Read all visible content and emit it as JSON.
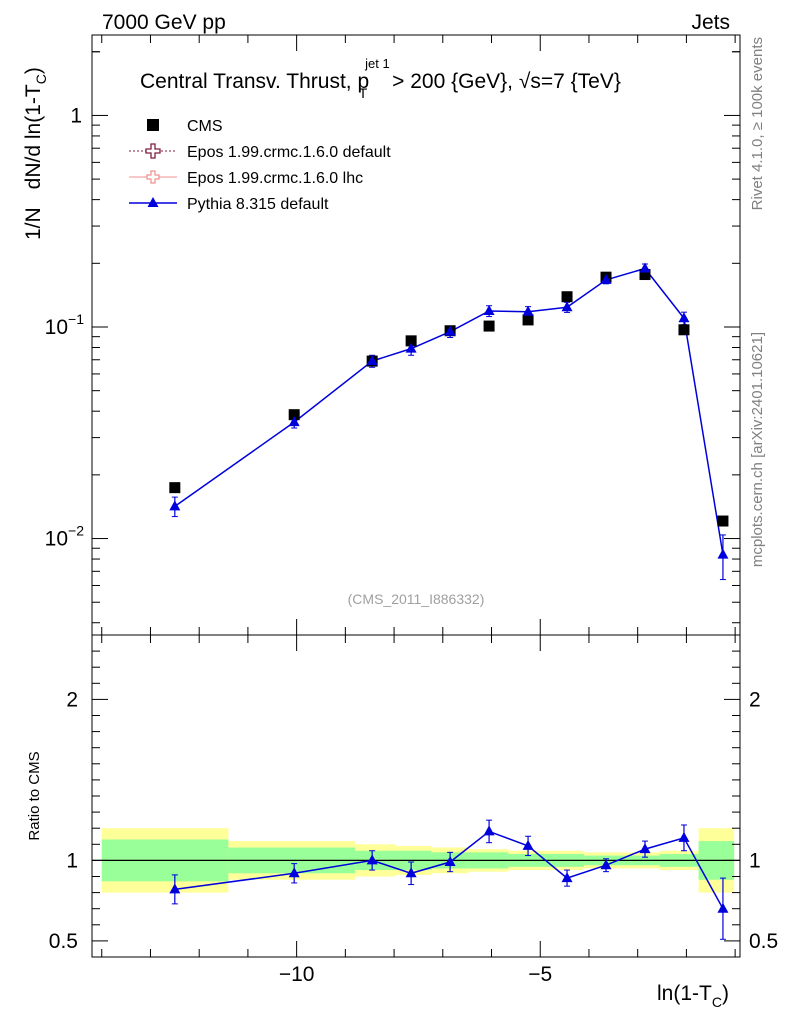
{
  "header": {
    "left": "7000 GeV pp",
    "right": "Jets",
    "side_top": "Rivet 4.1.0, ≥ 100k events",
    "side_bottom": "mcplots.cern.ch [arXiv:2401.10621]",
    "watermark": "(CMS_2011_I886332)"
  },
  "chart_data": {
    "type": "line",
    "title": "Central Transv. Thrust, p_T^{jet 1} > 200 {GeV}, √s=7 {TeV}",
    "title_parts": {
      "main": "Central Transv. Thrust, p",
      "sub": "T",
      "sup": "jet 1",
      "cut": " > 200 {GeV}, ",
      "sqrt": "√",
      "energy": "s=7 {TeV}"
    },
    "ylabel": "1/N   dN/d ln(1-T_C)",
    "ylabel_parts": {
      "left": "1/N",
      "main": "dN/d ln(1-T",
      "sub": "C",
      "close": ")"
    },
    "xlabel": "ln(1-T_C)",
    "xlabel_parts": {
      "main": "ln(1-T",
      "sub": "C",
      "close": ")"
    },
    "ratio_ylabel": "Ratio to CMS",
    "xlim": [
      -14.2,
      -0.9
    ],
    "ylim": [
      0.0035,
      2.4
    ],
    "yscale": "log",
    "ratio_ylim": [
      0.4,
      2.4
    ],
    "x_ticks": [
      {
        "value": -10,
        "label": "−10"
      },
      {
        "value": -5,
        "label": "−5"
      }
    ],
    "y_ticks": [
      {
        "value": 1,
        "label": "1",
        "exp": ""
      },
      {
        "value": 0.1,
        "label": "10",
        "exp": "−1"
      },
      {
        "value": 0.01,
        "label": "10",
        "exp": "−2"
      }
    ],
    "ratio_ticks": [
      {
        "value": 0.5,
        "label": "0.5"
      },
      {
        "value": 1,
        "label": "1"
      },
      {
        "value": 2,
        "label": "2"
      }
    ],
    "legend_placement": "top-left",
    "legend": [
      {
        "name": "CMS",
        "color": "#000000",
        "marker": "square"
      },
      {
        "name": "Epos 1.99.crmc.1.6.0 default",
        "color": "#7f1f3f",
        "marker": "cross-open"
      },
      {
        "name": "Epos 1.99.crmc.1.6.0 lhc",
        "color": "#f09090",
        "marker": "cross-open-light"
      },
      {
        "name": "Pythia 8.315 default",
        "color": "#0000dd",
        "marker": "triangle"
      }
    ],
    "bins": [
      [
        -14.0,
        -11.4
      ],
      [
        -11.4,
        -8.8
      ],
      [
        -8.8,
        -7.97
      ],
      [
        -7.97,
        -7.23
      ],
      [
        -7.23,
        -6.47
      ],
      [
        -6.47,
        -5.65
      ],
      [
        -5.65,
        -4.87
      ],
      [
        -4.87,
        -4.1
      ],
      [
        -4.1,
        -3.3
      ],
      [
        -3.3,
        -2.55
      ],
      [
        -2.55,
        -1.75
      ],
      [
        -1.75,
        -1.02
      ]
    ],
    "data": {
      "x": [
        -12.5,
        -10.05,
        -8.45,
        -7.65,
        -6.85,
        -6.05,
        -5.25,
        -4.45,
        -3.65,
        -2.85,
        -2.05,
        -1.25
      ],
      "y": [
        0.0174,
        0.0385,
        0.069,
        0.086,
        0.096,
        0.101,
        0.108,
        0.139,
        0.172,
        0.177,
        0.097,
        0.0121
      ],
      "stat_band": [
        0.13,
        0.08,
        0.06,
        0.06,
        0.05,
        0.05,
        0.04,
        0.04,
        0.03,
        0.03,
        0.04,
        0.12
      ],
      "total_band": [
        0.2,
        0.12,
        0.1,
        0.09,
        0.08,
        0.07,
        0.06,
        0.06,
        0.05,
        0.05,
        0.06,
        0.2
      ]
    },
    "series": [
      {
        "name": "Pythia 8.315 default",
        "x": [
          -12.5,
          -10.05,
          -8.45,
          -7.65,
          -6.85,
          -6.05,
          -5.25,
          -4.45,
          -3.65,
          -2.85,
          -2.05,
          -1.25
        ],
        "y": [
          0.0142,
          0.0355,
          0.069,
          0.079,
          0.095,
          0.119,
          0.118,
          0.124,
          0.167,
          0.189,
          0.11,
          0.0084
        ],
        "err": [
          0.0015,
          0.0022,
          0.0045,
          0.0055,
          0.0058,
          0.007,
          0.0068,
          0.0068,
          0.007,
          0.0095,
          0.0075,
          0.002
        ],
        "ratio": [
          0.82,
          0.92,
          1.0,
          0.92,
          0.99,
          1.18,
          1.09,
          0.89,
          0.97,
          1.07,
          1.14,
          0.7
        ],
        "ratio_err": [
          0.09,
          0.06,
          0.06,
          0.07,
          0.06,
          0.07,
          0.06,
          0.05,
          0.04,
          0.05,
          0.08,
          0.19
        ]
      }
    ]
  }
}
